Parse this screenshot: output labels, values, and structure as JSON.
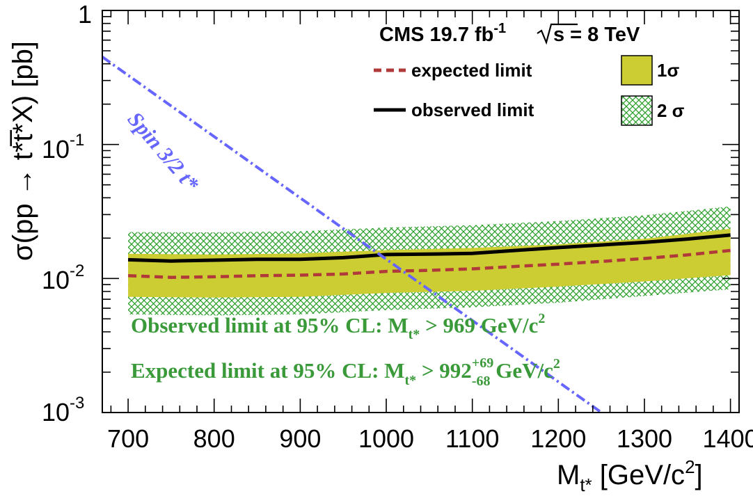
{
  "header": {
    "cms": "CMS 19.7 fb",
    "lumi_exp": "-1",
    "sqrt_s": "s = 8 TeV"
  },
  "legend": {
    "expected": "expected limit",
    "observed": "observed limit",
    "one_sigma": "1σ",
    "two_sigma": "2 σ"
  },
  "axes": {
    "xlabel_main": "M",
    "xlabel_sub": "t*",
    "xlabel_unit": " [GeV/c",
    "xlabel_unit_sup": "2",
    "xlabel_close": "]",
    "ylabel": "σ(pp → t*t̅*X) [pb]",
    "ytick_1": "1",
    "ytick_01_base": "10",
    "ytick_01_exp": "-1",
    "ytick_001_base": "10",
    "ytick_001_exp": "-2",
    "ytick_0001_base": "10",
    "ytick_0001_exp": "-3"
  },
  "annotations": {
    "theory": "Spin 3/2 t*",
    "observed_prefix": "Observed limit at 95% CL: M",
    "observed_sub": "t*",
    "observed_suffix": " > 969 GeV/c",
    "observed_sup": "2",
    "expected_prefix": "Expected limit at 95% CL: M",
    "expected_sub": "t*",
    "expected_value": " > 992",
    "expected_up": "+69",
    "expected_down": "-68",
    "expected_suffix": " GeV/c",
    "expected_sup": "2"
  },
  "colors": {
    "band_1sigma": "#cccc33",
    "band_2sigma_hatch": "#2ca02c",
    "expected_line": "#b03a3a",
    "observed_line": "#000000",
    "theory_line": "#6666ff",
    "result_text": "#3a9a3a"
  },
  "chart_data": {
    "type": "line",
    "xlim": [
      670,
      1410
    ],
    "ylim": [
      0.001,
      1
    ],
    "yscale": "log",
    "x_ticks": [
      700,
      800,
      900,
      1000,
      1100,
      1200,
      1300,
      1400
    ],
    "series": [
      {
        "name": "observed limit",
        "x": [
          700,
          750,
          800,
          850,
          900,
          950,
          1000,
          1050,
          1100,
          1150,
          1200,
          1250,
          1300,
          1350,
          1400
        ],
        "y": [
          0.0138,
          0.0135,
          0.0137,
          0.0139,
          0.0139,
          0.0143,
          0.0151,
          0.0152,
          0.0154,
          0.0162,
          0.017,
          0.0178,
          0.0186,
          0.0197,
          0.0211
        ]
      },
      {
        "name": "expected limit",
        "x": [
          700,
          750,
          800,
          850,
          900,
          950,
          1000,
          1050,
          1100,
          1150,
          1200,
          1250,
          1300,
          1350,
          1400
        ],
        "y": [
          0.0105,
          0.0102,
          0.0103,
          0.0105,
          0.0106,
          0.0108,
          0.0113,
          0.0115,
          0.0118,
          0.0123,
          0.0128,
          0.0134,
          0.0141,
          0.015,
          0.0162
        ]
      },
      {
        "name": "1σ",
        "x": [
          700,
          800,
          900,
          1000,
          1100,
          1200,
          1300,
          1400
        ],
        "low": [
          0.0073,
          0.0072,
          0.0073,
          0.0078,
          0.0081,
          0.0087,
          0.0095,
          0.0106
        ],
        "high": [
          0.0153,
          0.0151,
          0.0154,
          0.0163,
          0.0169,
          0.018,
          0.0198,
          0.0235
        ]
      },
      {
        "name": "2 σ",
        "x": [
          700,
          800,
          900,
          1000,
          1100,
          1200,
          1300,
          1400
        ],
        "low": [
          0.0054,
          0.0053,
          0.0054,
          0.0058,
          0.0061,
          0.0066,
          0.0074,
          0.0083
        ],
        "high": [
          0.0222,
          0.0221,
          0.0225,
          0.024,
          0.025,
          0.0268,
          0.0296,
          0.0345
        ]
      },
      {
        "name": "Spin 3/2 t*",
        "x": [
          670,
          1250
        ],
        "y": [
          0.45,
          0.001
        ]
      }
    ]
  }
}
